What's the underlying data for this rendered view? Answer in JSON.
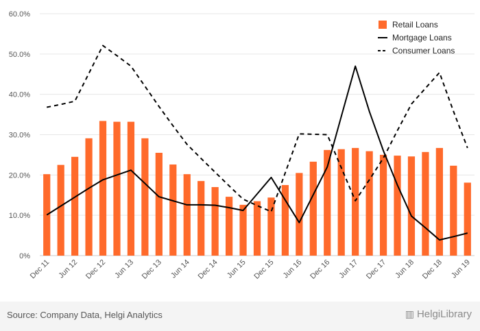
{
  "chart_data": {
    "type": "bar+line",
    "categories": [
      "Dec 11",
      "",
      "Jun 12",
      "",
      "Dec 12",
      "",
      "Jun 13",
      "",
      "Dec 13",
      "",
      "Jun 14",
      "",
      "Dec 14",
      "",
      "Jun 15",
      "",
      "Dec 15",
      "",
      "Jun 16",
      "",
      "Dec 16",
      "",
      "Jun 17",
      "",
      "Dec 17",
      "",
      "Jun 18",
      "",
      "Dec 18",
      "",
      "Jun 19"
    ],
    "tick_labels": [
      "Dec 11",
      "Jun 12",
      "Dec 12",
      "Jun 13",
      "Dec 13",
      "Jun 14",
      "Dec 14",
      "Jun 15",
      "Dec 15",
      "Jun 16",
      "Dec 16",
      "Jun 17",
      "Dec 17",
      "Jun 18",
      "Dec 18",
      "Jun 19"
    ],
    "series": [
      {
        "name": "Retail Loans",
        "type": "bar",
        "color": "#ff6a2b",
        "values": [
          20.2,
          22.5,
          24.5,
          29.1,
          33.4,
          33.2,
          33.2,
          29.1,
          25.5,
          22.6,
          20.2,
          18.5,
          17.0,
          14.6,
          12.6,
          13.5,
          14.4,
          17.5,
          20.5,
          23.3,
          26.2,
          26.4,
          26.7,
          25.9,
          25.0,
          24.8,
          24.6,
          25.7,
          26.7,
          22.3,
          18.1
        ]
      },
      {
        "name": "Mortgage Loans",
        "type": "line",
        "style": "solid",
        "color": "#000000",
        "values": [
          10.1,
          12.3,
          14.5,
          16.7,
          18.8,
          20.0,
          21.2,
          17.9,
          14.6,
          13.6,
          12.6,
          12.6,
          12.5,
          11.9,
          11.2,
          15.3,
          19.4,
          13.8,
          8.2,
          15.1,
          22.0,
          34.5,
          47.0,
          35.8,
          26.0,
          17.5,
          9.8,
          6.9,
          3.9,
          4.7,
          5.6
        ]
      },
      {
        "name": "Consumer Loans",
        "type": "line",
        "style": "dashed",
        "color": "#000000",
        "values": [
          36.8,
          37.5,
          38.3,
          45.2,
          52.1,
          49.6,
          47.0,
          42.0,
          37.0,
          32.2,
          27.6,
          24.1,
          20.7,
          17.3,
          14.0,
          12.4,
          10.9,
          20.5,
          30.2,
          30.1,
          30.0,
          21.8,
          13.6,
          18.8,
          24.2,
          31.0,
          37.6,
          41.5,
          45.4,
          35.8,
          26.7
        ]
      }
    ],
    "ylim": [
      0,
      60
    ],
    "yticks": [
      "0%",
      "10.0%",
      "20.0%",
      "30.0%",
      "40.0%",
      "50.0%",
      "60.0%"
    ],
    "grid": true,
    "legend_position": "top-right"
  },
  "footer": {
    "source": "Source: Company Data, Helgi Analytics",
    "brand": "HelgiLibrary"
  }
}
